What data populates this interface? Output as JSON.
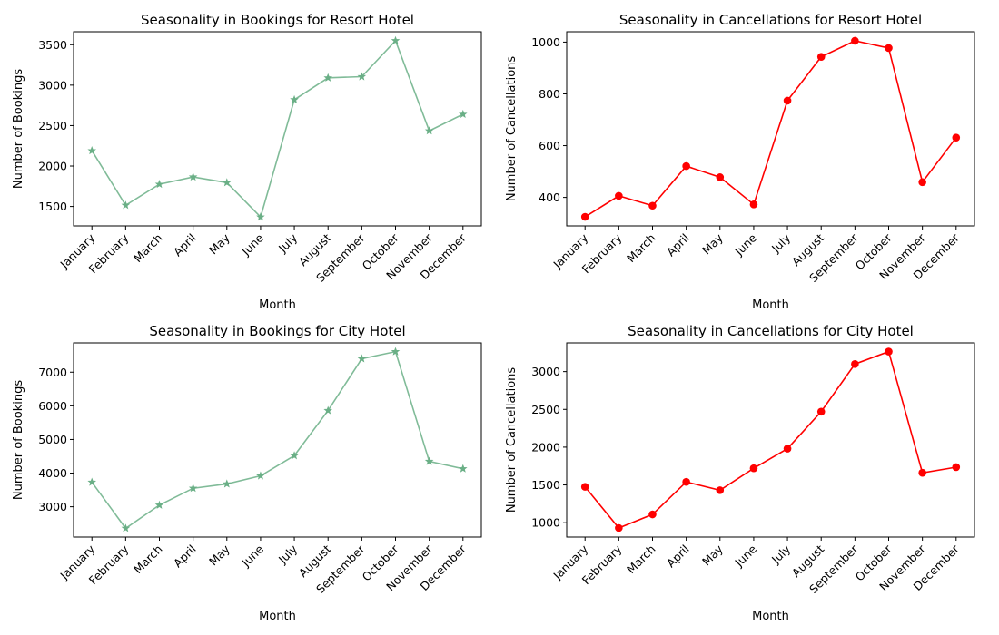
{
  "chart_data": [
    {
      "type": "line",
      "title": "Seasonality in Bookings for Resort Hotel",
      "xlabel": "Month",
      "ylabel": "Number of Bookings",
      "categories": [
        "January",
        "February",
        "March",
        "April",
        "May",
        "June",
        "July",
        "August",
        "September",
        "October",
        "November",
        "December"
      ],
      "values": [
        2190,
        1515,
        1775,
        1865,
        1795,
        1370,
        2820,
        3090,
        3105,
        3550,
        2435,
        2640
      ],
      "ylim": [
        1260,
        3660
      ],
      "yticks": [
        1500,
        2000,
        2500,
        3000,
        3500
      ],
      "color": "#6aaf86",
      "marker": "star",
      "grid": false
    },
    {
      "type": "line",
      "title": "Seasonality in Cancellations for Resort Hotel",
      "xlabel": "Month",
      "ylabel": "Number of Cancellations",
      "categories": [
        "January",
        "February",
        "March",
        "April",
        "May",
        "June",
        "July",
        "August",
        "September",
        "October",
        "November",
        "December"
      ],
      "values": [
        325,
        406,
        368,
        521,
        478,
        373,
        774,
        943,
        1005,
        977,
        459,
        631
      ],
      "ylim": [
        290,
        1040
      ],
      "yticks": [
        400,
        600,
        800,
        1000
      ],
      "color": "#ff0000",
      "marker": "circle",
      "grid": false
    },
    {
      "type": "line",
      "title": "Seasonality in Bookings for City Hotel",
      "xlabel": "Month",
      "ylabel": "Number of Bookings",
      "categories": [
        "January",
        "February",
        "March",
        "April",
        "May",
        "June",
        "July",
        "August",
        "September",
        "October",
        "November",
        "December"
      ],
      "values": [
        3730,
        2360,
        3050,
        3550,
        3680,
        3920,
        4520,
        5860,
        7400,
        7610,
        4350,
        4130
      ],
      "ylim": [
        2100,
        7870
      ],
      "yticks": [
        3000,
        4000,
        5000,
        6000,
        7000
      ],
      "color": "#6aaf86",
      "marker": "star",
      "grid": false
    },
    {
      "type": "line",
      "title": "Seasonality in Cancellations for City Hotel",
      "xlabel": "Month",
      "ylabel": "Number of Cancellations",
      "categories": [
        "January",
        "February",
        "March",
        "April",
        "May",
        "June",
        "July",
        "August",
        "September",
        "October",
        "November",
        "December"
      ],
      "values": [
        1475,
        930,
        1110,
        1540,
        1430,
        1720,
        1980,
        2470,
        3100,
        3265,
        1660,
        1735
      ],
      "ylim": [
        810,
        3380
      ],
      "yticks": [
        1000,
        1500,
        2000,
        2500,
        3000
      ],
      "color": "#ff0000",
      "marker": "circle",
      "grid": false
    }
  ]
}
